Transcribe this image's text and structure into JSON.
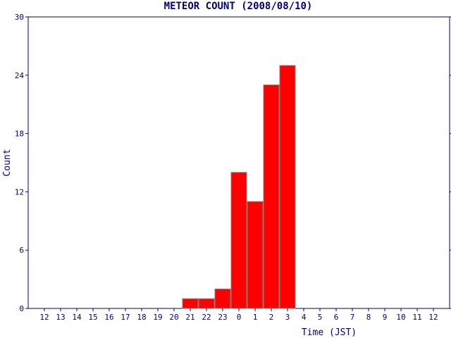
{
  "chart_data": {
    "type": "bar",
    "title": "METEOR COUNT (2008/08/10)",
    "xlabel": "Time (JST)",
    "ylabel": "Count",
    "categories": [
      "12",
      "13",
      "14",
      "15",
      "16",
      "17",
      "18",
      "19",
      "20",
      "21",
      "22",
      "23",
      "0",
      "1",
      "2",
      "3",
      "4",
      "5",
      "6",
      "7",
      "8",
      "9",
      "10",
      "11",
      "12"
    ],
    "values": [
      0,
      0,
      0,
      0,
      0,
      0,
      0,
      0,
      0,
      1,
      1,
      2,
      14,
      11,
      23,
      25,
      0,
      0,
      0,
      0,
      0,
      0,
      0,
      0,
      0
    ],
    "ylim": [
      0,
      30
    ],
    "yticks": [
      0,
      6,
      12,
      18,
      24,
      30
    ],
    "grid": false,
    "bar_color": "#ff0000",
    "bar_edge_color": "#808080",
    "axis_color": "#000080"
  }
}
